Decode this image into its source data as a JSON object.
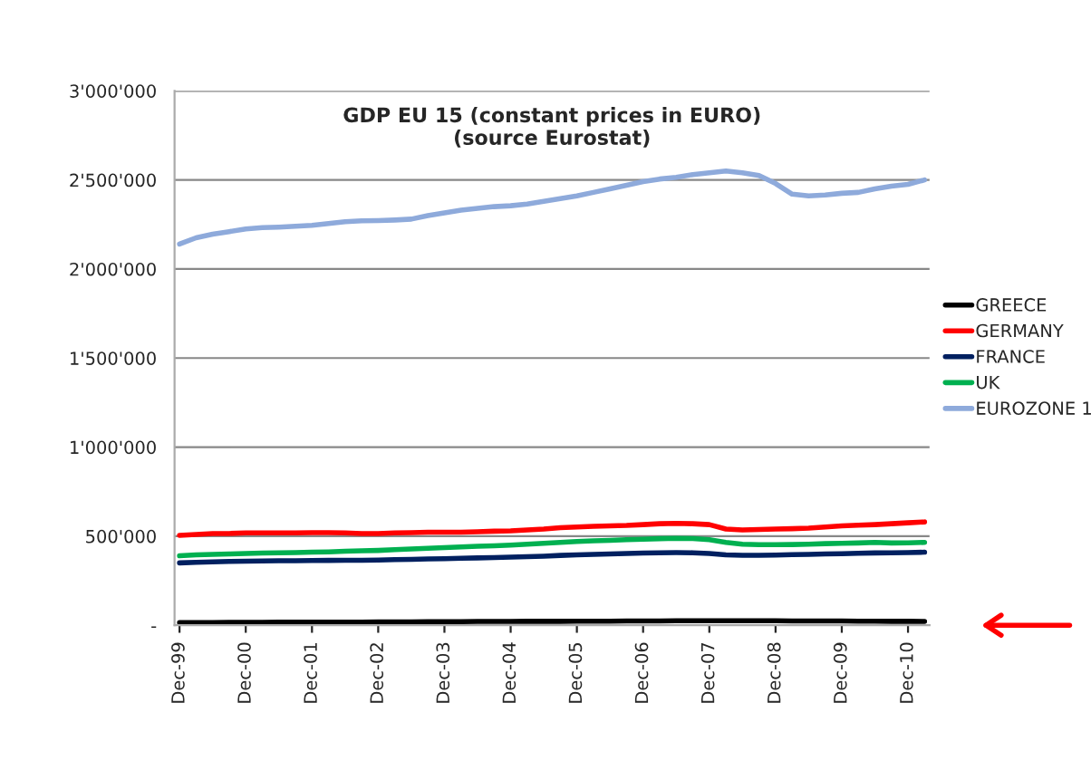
{
  "chart_data": {
    "type": "line",
    "title": "GDP EU 15 (constant prices in EURO)\n(source Eurostat)",
    "categories": [
      "Dec-99",
      null,
      null,
      null,
      "Dec-00",
      null,
      null,
      null,
      "Dec-01",
      null,
      null,
      null,
      "Dec-02",
      null,
      null,
      null,
      "Dec-03",
      null,
      null,
      null,
      "Dec-04",
      null,
      null,
      null,
      "Dec-05",
      null,
      null,
      null,
      "Dec-06",
      null,
      null,
      null,
      "Dec-07",
      null,
      null,
      null,
      "Dec-08",
      null,
      null,
      null,
      "Dec-09",
      null,
      null,
      null,
      "Dec-10",
      null
    ],
    "series": [
      {
        "name": "GREECE",
        "color": "#000000",
        "values": [
          15000,
          15000,
          15000,
          16000,
          16000,
          16000,
          17000,
          17000,
          17000,
          18000,
          18000,
          18000,
          19000,
          19000,
          19000,
          20000,
          20000,
          20000,
          21000,
          21000,
          21000,
          22000,
          22000,
          22000,
          23000,
          23000,
          23000,
          24000,
          24000,
          24000,
          25000,
          25000,
          25000,
          25000,
          25000,
          25000,
          25000,
          24000,
          24000,
          24000,
          24000,
          23000,
          23000,
          22000,
          22000,
          21000
        ]
      },
      {
        "name": "GERMANY",
        "color": "#ff0000",
        "values": [
          505000,
          510000,
          515000,
          515000,
          518000,
          518000,
          518000,
          518000,
          520000,
          520000,
          518000,
          515000,
          515000,
          518000,
          520000,
          522000,
          522000,
          522000,
          525000,
          528000,
          530000,
          535000,
          540000,
          548000,
          552000,
          555000,
          558000,
          560000,
          565000,
          570000,
          572000,
          570000,
          565000,
          540000,
          535000,
          538000,
          540000,
          542000,
          545000,
          552000,
          558000,
          562000,
          565000,
          570000,
          575000,
          580000
        ]
      },
      {
        "name": "FRANCE",
        "color": "#002060",
        "values": [
          350000,
          353000,
          356000,
          358000,
          360000,
          361000,
          362000,
          362000,
          363000,
          364000,
          365000,
          365000,
          366000,
          368000,
          370000,
          372000,
          374000,
          376000,
          378000,
          380000,
          382000,
          385000,
          388000,
          392000,
          395000,
          398000,
          400000,
          403000,
          405000,
          407000,
          408000,
          407000,
          403000,
          395000,
          393000,
          393000,
          394000,
          396000,
          398000,
          400000,
          402000,
          404000,
          406000,
          407000,
          408000,
          410000
        ]
      },
      {
        "name": "UK",
        "color": "#00b050",
        "values": [
          390000,
          395000,
          398000,
          400000,
          403000,
          405000,
          407000,
          408000,
          410000,
          412000,
          415000,
          418000,
          420000,
          424000,
          428000,
          432000,
          436000,
          440000,
          443000,
          446000,
          450000,
          455000,
          460000,
          465000,
          470000,
          474000,
          477000,
          480000,
          483000,
          486000,
          488000,
          487000,
          480000,
          465000,
          455000,
          452000,
          452000,
          453000,
          455000,
          458000,
          460000,
          462000,
          465000,
          462000,
          463000,
          465000
        ]
      },
      {
        "name": "EUROZONE 1",
        "color": "#8eaadb",
        "values": [
          2140000,
          2175000,
          2195000,
          2210000,
          2225000,
          2232000,
          2235000,
          2240000,
          2245000,
          2255000,
          2265000,
          2270000,
          2272000,
          2275000,
          2280000,
          2300000,
          2315000,
          2330000,
          2340000,
          2350000,
          2355000,
          2365000,
          2380000,
          2395000,
          2410000,
          2430000,
          2450000,
          2470000,
          2490000,
          2505000,
          2515000,
          2530000,
          2540000,
          2550000,
          2540000,
          2525000,
          2480000,
          2420000,
          2410000,
          2415000,
          2425000,
          2430000,
          2450000,
          2465000,
          2475000,
          2500000
        ]
      }
    ],
    "ylim": [
      0,
      3000000
    ],
    "yticks": [
      {
        "value": 0,
        "label": "-"
      },
      {
        "value": 500000,
        "label": "500'000"
      },
      {
        "value": 1000000,
        "label": "1'000'000"
      },
      {
        "value": 1500000,
        "label": "1'500'000"
      },
      {
        "value": 2000000,
        "label": "2'000'000"
      },
      {
        "value": 2500000,
        "label": "2'500'000"
      },
      {
        "value": 3000000,
        "label": "3'000'000"
      }
    ],
    "grid": "y",
    "legend": "right"
  }
}
